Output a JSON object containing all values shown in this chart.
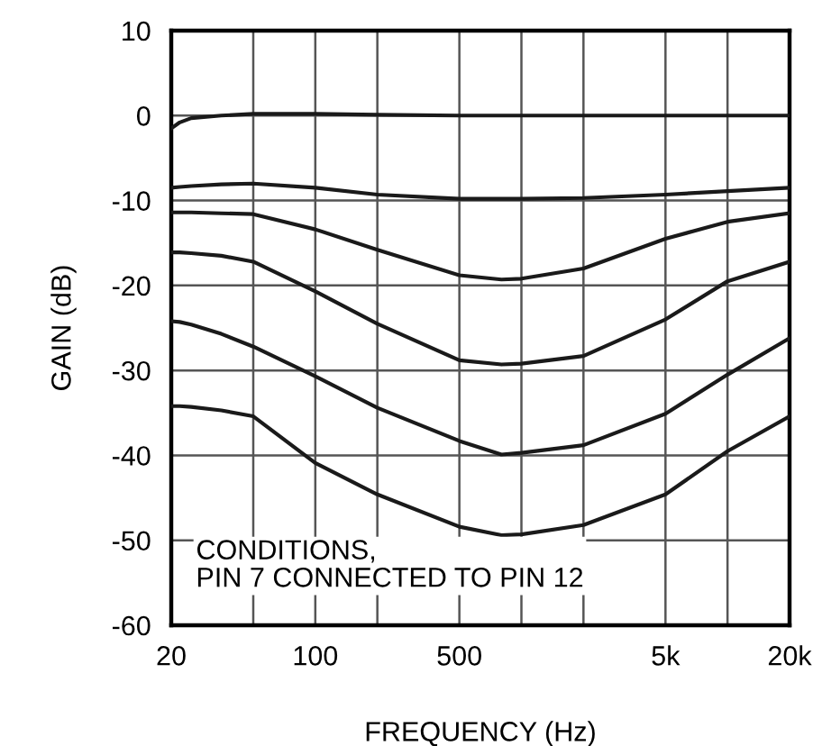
{
  "chart_data": {
    "type": "line",
    "xlabel": "FREQUENCY (Hz)",
    "ylabel": "GAIN (dB)",
    "log": "x",
    "grid": true,
    "legend": false,
    "marker": "none",
    "line_style": "solid",
    "xlim": [
      20,
      20000
    ],
    "xticks": [
      20,
      {
        "value": 50,
        "label": null
      },
      100,
      {
        "value": 200,
        "label": null
      },
      500,
      {
        "value": 1000,
        "label": null
      },
      {
        "value": 2000,
        "label": null
      },
      {
        "value": 5000,
        "label": "5k"
      },
      {
        "value": 10000,
        "label": null
      },
      {
        "value": 20000,
        "label": "20k"
      }
    ],
    "ylim": [
      -60,
      10
    ],
    "yticks": [
      -60,
      -50,
      -40,
      -30,
      -20,
      -10,
      0,
      10
    ],
    "x": [
      20,
      22,
      25,
      35,
      50,
      100,
      200,
      500,
      800,
      1000,
      2000,
      5000,
      10000,
      20000
    ],
    "series": [
      {
        "color": "#1a1a1a",
        "values": [
          -1.5,
          -0.8,
          -0.3,
          0,
          0.2,
          0.2,
          0.1,
          0,
          0,
          0,
          0,
          0,
          0,
          0
        ]
      },
      {
        "color": "#1a1a1a",
        "values": [
          -8.5,
          -8.4,
          -8.3,
          -8.1,
          -8.0,
          -8.5,
          -9.3,
          -9.8,
          -9.8,
          -9.8,
          -9.7,
          -9.3,
          -8.9,
          -8.5
        ]
      },
      {
        "color": "#1a1a1a",
        "values": [
          -11.4,
          -11.4,
          -11.4,
          -11.5,
          -11.6,
          -13.4,
          -15.8,
          -18.8,
          -19.3,
          -19.2,
          -18.0,
          -14.5,
          -12.5,
          -11.5
        ]
      },
      {
        "color": "#1a1a1a",
        "values": [
          -16.1,
          -16.1,
          -16.2,
          -16.5,
          -17.2,
          -20.7,
          -24.5,
          -28.8,
          -29.3,
          -29.2,
          -28.3,
          -24.0,
          -19.5,
          -17.2
        ]
      },
      {
        "color": "#1a1a1a",
        "values": [
          -24.2,
          -24.3,
          -24.6,
          -25.7,
          -27.2,
          -30.7,
          -34.4,
          -38.3,
          -39.9,
          -39.7,
          -38.8,
          -35.1,
          -30.5,
          -26.2
        ]
      },
      {
        "color": "#1a1a1a",
        "values": [
          -34.2,
          -34.2,
          -34.3,
          -34.7,
          -35.4,
          -40.9,
          -44.6,
          -48.4,
          -49.4,
          -49.3,
          -48.2,
          -44.6,
          -39.5,
          -35.4
        ]
      }
    ],
    "annotations": [
      "CONDITIONS,\nPIN 7 CONNECTED TO PIN 12"
    ]
  }
}
